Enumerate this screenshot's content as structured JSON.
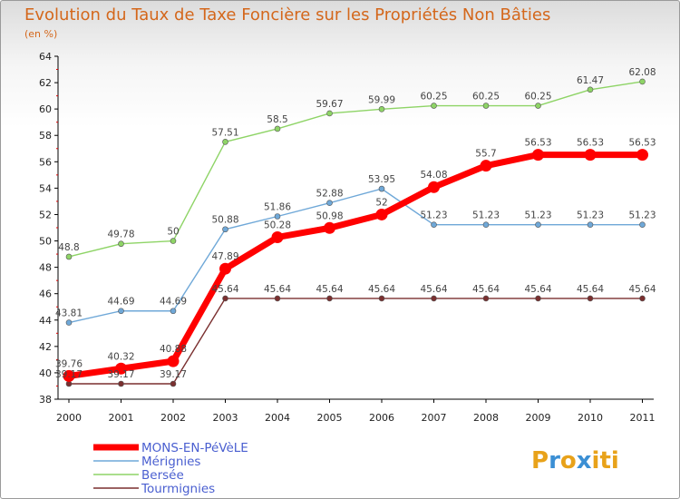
{
  "title": "Evolution du Taux de Taxe Foncière sur les Propriétés Non Bâties",
  "subtitle": "(en %)",
  "logo": {
    "text": "Proxiti",
    "colors": [
      "#e8a21a",
      "#3b8fd4",
      "#e8a21a",
      "#3b8fd4",
      "#e8a21a",
      "#e8a21a",
      "#e8a21a"
    ]
  },
  "chart_data": {
    "type": "line",
    "x": [
      "2000",
      "2001",
      "2002",
      "2003",
      "2004",
      "2005",
      "2006",
      "2007",
      "2008",
      "2009",
      "2010",
      "2011"
    ],
    "ylim": [
      38,
      64
    ],
    "yticks": [
      38,
      40,
      42,
      44,
      46,
      48,
      50,
      52,
      54,
      56,
      58,
      60,
      62,
      64
    ],
    "grid": false,
    "legend": "bottom-left",
    "series": [
      {
        "name": "Tourmignies",
        "color": "#7a2f2f",
        "width": 1.4,
        "values": [
          39.17,
          39.17,
          39.17,
          45.64,
          45.64,
          45.64,
          45.64,
          45.64,
          45.64,
          45.64,
          45.64,
          45.64
        ],
        "labels": [
          "39.17",
          "39.17",
          "39.17",
          "45.64",
          "45.64",
          "45.64",
          "45.64",
          "45.64",
          "45.64",
          "45.64",
          "45.64",
          "45.64"
        ]
      },
      {
        "name": "Bersée",
        "color": "#8ed466",
        "width": 1.4,
        "values": [
          48.8,
          49.78,
          50,
          57.51,
          58.5,
          59.67,
          59.99,
          60.25,
          60.25,
          60.25,
          61.47,
          62.08
        ],
        "labels": [
          "48.8",
          "49.78",
          "50",
          "57.51",
          "58.5",
          "59.67",
          "59.99",
          "60.25",
          "60.25",
          "60.25",
          "61.47",
          "62.08"
        ]
      },
      {
        "name": "Mérignies",
        "color": "#6fa8d8",
        "width": 1.4,
        "values": [
          43.81,
          44.69,
          44.69,
          50.88,
          51.86,
          52.88,
          53.95,
          51.23,
          51.23,
          51.23,
          51.23,
          51.23
        ],
        "labels": [
          "43.81",
          "44.69",
          "44.69",
          "50.88",
          "51.86",
          "52.88",
          "53.95",
          "51.23",
          "51.23",
          "51.23",
          "51.23",
          "51.23"
        ]
      },
      {
        "name": "MONS-EN-PéVèLE",
        "color": "#ff0000",
        "width": 7,
        "values": [
          39.76,
          40.32,
          40.88,
          47.89,
          50.28,
          50.98,
          52,
          54.08,
          55.7,
          56.53,
          56.53,
          56.53
        ],
        "labels": [
          "39.76",
          "40.32",
          "40.88",
          "47.89",
          "50.28",
          "50.98",
          "52",
          "54.08",
          "55.7",
          "56.53",
          "56.53",
          "56.53"
        ]
      }
    ],
    "legend_order": [
      "MONS-EN-PéVèLE",
      "Mérignies",
      "Bersée",
      "Tourmignies"
    ]
  }
}
